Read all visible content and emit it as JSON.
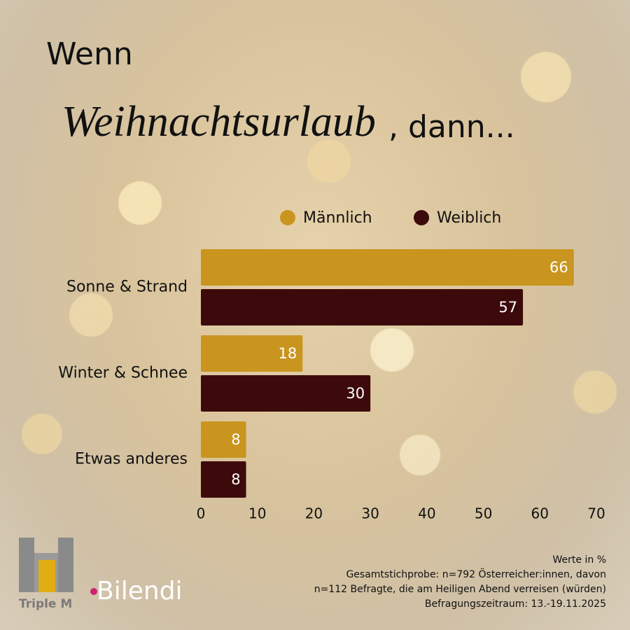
{
  "chart_data": {
    "type": "hbar",
    "title": {
      "line1": "Wenn",
      "script": "Weihnachtsurlaub",
      "rest": ", dann..."
    },
    "categories": [
      "Sonne & Strand",
      "Winter & Schnee",
      "Etwas anderes"
    ],
    "series": [
      {
        "name": "Männlich",
        "color": "#c9951f",
        "values": [
          66,
          18,
          8
        ]
      },
      {
        "name": "Weiblich",
        "color": "#3d0a0c",
        "values": [
          57,
          30,
          8
        ]
      }
    ],
    "xlim": [
      0,
      70
    ],
    "xticks": [
      0,
      10,
      20,
      30,
      40,
      50,
      60,
      70
    ],
    "grid": false,
    "legend": "top",
    "notes": [
      "Werte in %",
      "Gesamtstichprobe: n=792 Österreicher:innen, davon",
      "n=112 Befragte, die am Heiligen Abend verreisen (würden)",
      "Befragungszeitraum: 13.-19.11.2025"
    ]
  },
  "logos": [
    "Triple M",
    "Bilendi"
  ]
}
